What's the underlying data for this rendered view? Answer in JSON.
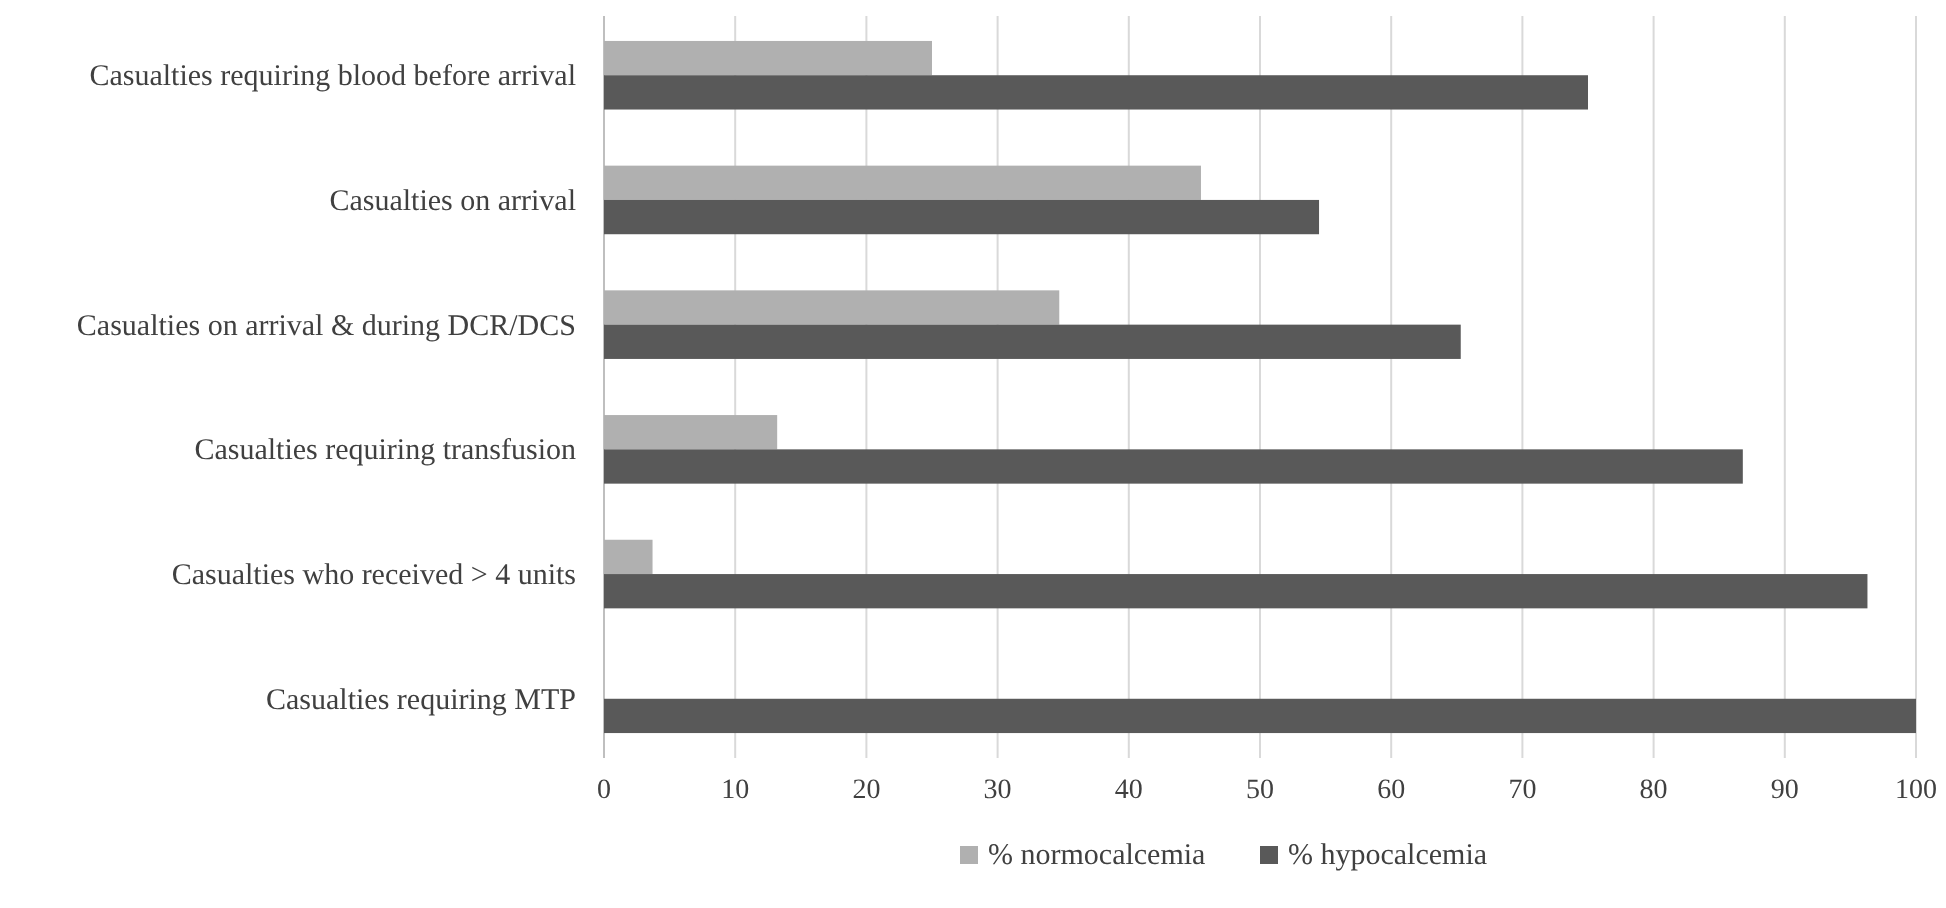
{
  "chart_data": {
    "type": "bar",
    "orientation": "horizontal",
    "categories": [
      "Casualties requiring blood before arrival",
      "Casualties on arrival",
      "Casualties on arrival & during DCR/DCS",
      "Casualties requiring transfusion",
      "Casualties who received > 4 units",
      "Casualties requiring MTP"
    ],
    "series": [
      {
        "name": "% normocalcemia",
        "color": "#b0b0b0",
        "values": [
          25,
          45.5,
          34.7,
          13.2,
          3.7,
          0
        ]
      },
      {
        "name": "% hypocalcemia",
        "color": "#595959",
        "values": [
          75,
          54.5,
          65.3,
          86.8,
          96.3,
          100
        ]
      }
    ],
    "xlim": [
      0,
      100
    ],
    "xticks": [
      0,
      10,
      20,
      30,
      40,
      50,
      60,
      70,
      80,
      90,
      100
    ],
    "grid": "x",
    "legend": "bottom"
  }
}
